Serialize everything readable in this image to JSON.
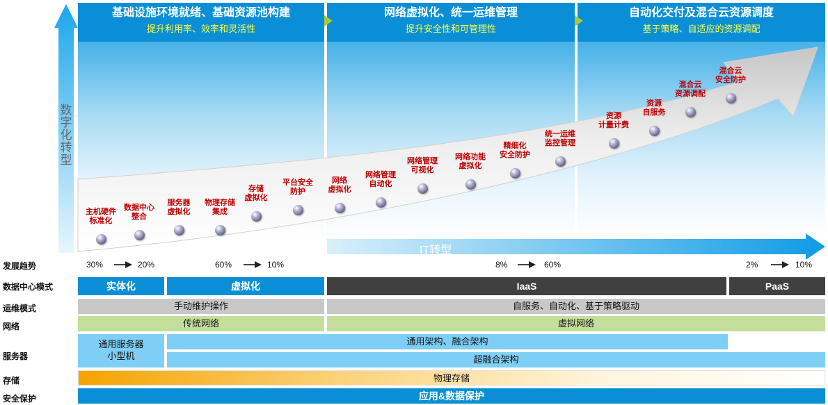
{
  "phases": [
    {
      "title": "基础设施环境就绪、基础资源池构建",
      "subtitle": "提升利用率、效率和灵活性"
    },
    {
      "title": "网络虚拟化、统一运维管理",
      "subtitle": "提升安全性和可管理性"
    },
    {
      "title": "自动化交付及混合云资源调度",
      "subtitle": "基于策略、自适应的资源调配"
    }
  ],
  "axis": {
    "vertical": "数字化转型",
    "horizontal": "IT转型"
  },
  "milestones": [
    {
      "label": "主机硬件\n标准化"
    },
    {
      "label": "数据中心\n整合"
    },
    {
      "label": "服务器\n虚拟化"
    },
    {
      "label": "物理存储\n集成"
    },
    {
      "label": "存储\n虚拟化"
    },
    {
      "label": "平台安全\n防护"
    },
    {
      "label": "网络\n虚拟化"
    },
    {
      "label": "网络管理\n自动化"
    },
    {
      "label": "网络管理\n可视化"
    },
    {
      "label": "网络功能\n虚拟化"
    },
    {
      "label": "精细化\n安全防护"
    },
    {
      "label": "统一运维\n监控管理"
    },
    {
      "label": "资源\n计量计费"
    },
    {
      "label": "资源\n自服务"
    },
    {
      "label": "混合云\n资源调配"
    },
    {
      "label": "混合云\n安全防护"
    }
  ],
  "rows": {
    "trend": "发展趋势",
    "dc_mode": "数据中心模式",
    "ops_mode": "运维模式",
    "network": "网络",
    "server": "服务器",
    "storage": "存储",
    "security": "安全保护"
  },
  "trend_values": [
    {
      "from": "30%",
      "to": "20%"
    },
    {
      "from": "60%",
      "to": "10%"
    },
    {
      "from": "8%",
      "to": "60%"
    },
    {
      "from": "2%",
      "to": "10%"
    }
  ],
  "dc_modes": [
    "实体化",
    "虚拟化",
    "IaaS",
    "PaaS"
  ],
  "ops_modes": [
    "手动维护操作",
    "自服务、自动化、基于策略驱动"
  ],
  "networks": [
    "传统网络",
    "虚拟网络"
  ],
  "servers": [
    "通用服务器\n小型机",
    "通用架构、融合架构",
    "超融合架构"
  ],
  "storage": "物理存储",
  "security": "应用&数据保护",
  "colors": {
    "phase_header": "#0a8fd6",
    "milestone_text": "#c00000",
    "dark_bar": "#404040",
    "gray_bar": "#c8c8c8",
    "green_bar": "#c4df9b",
    "blue_bar": "#7ecef5",
    "accent_chevron": "#a9c93a"
  }
}
